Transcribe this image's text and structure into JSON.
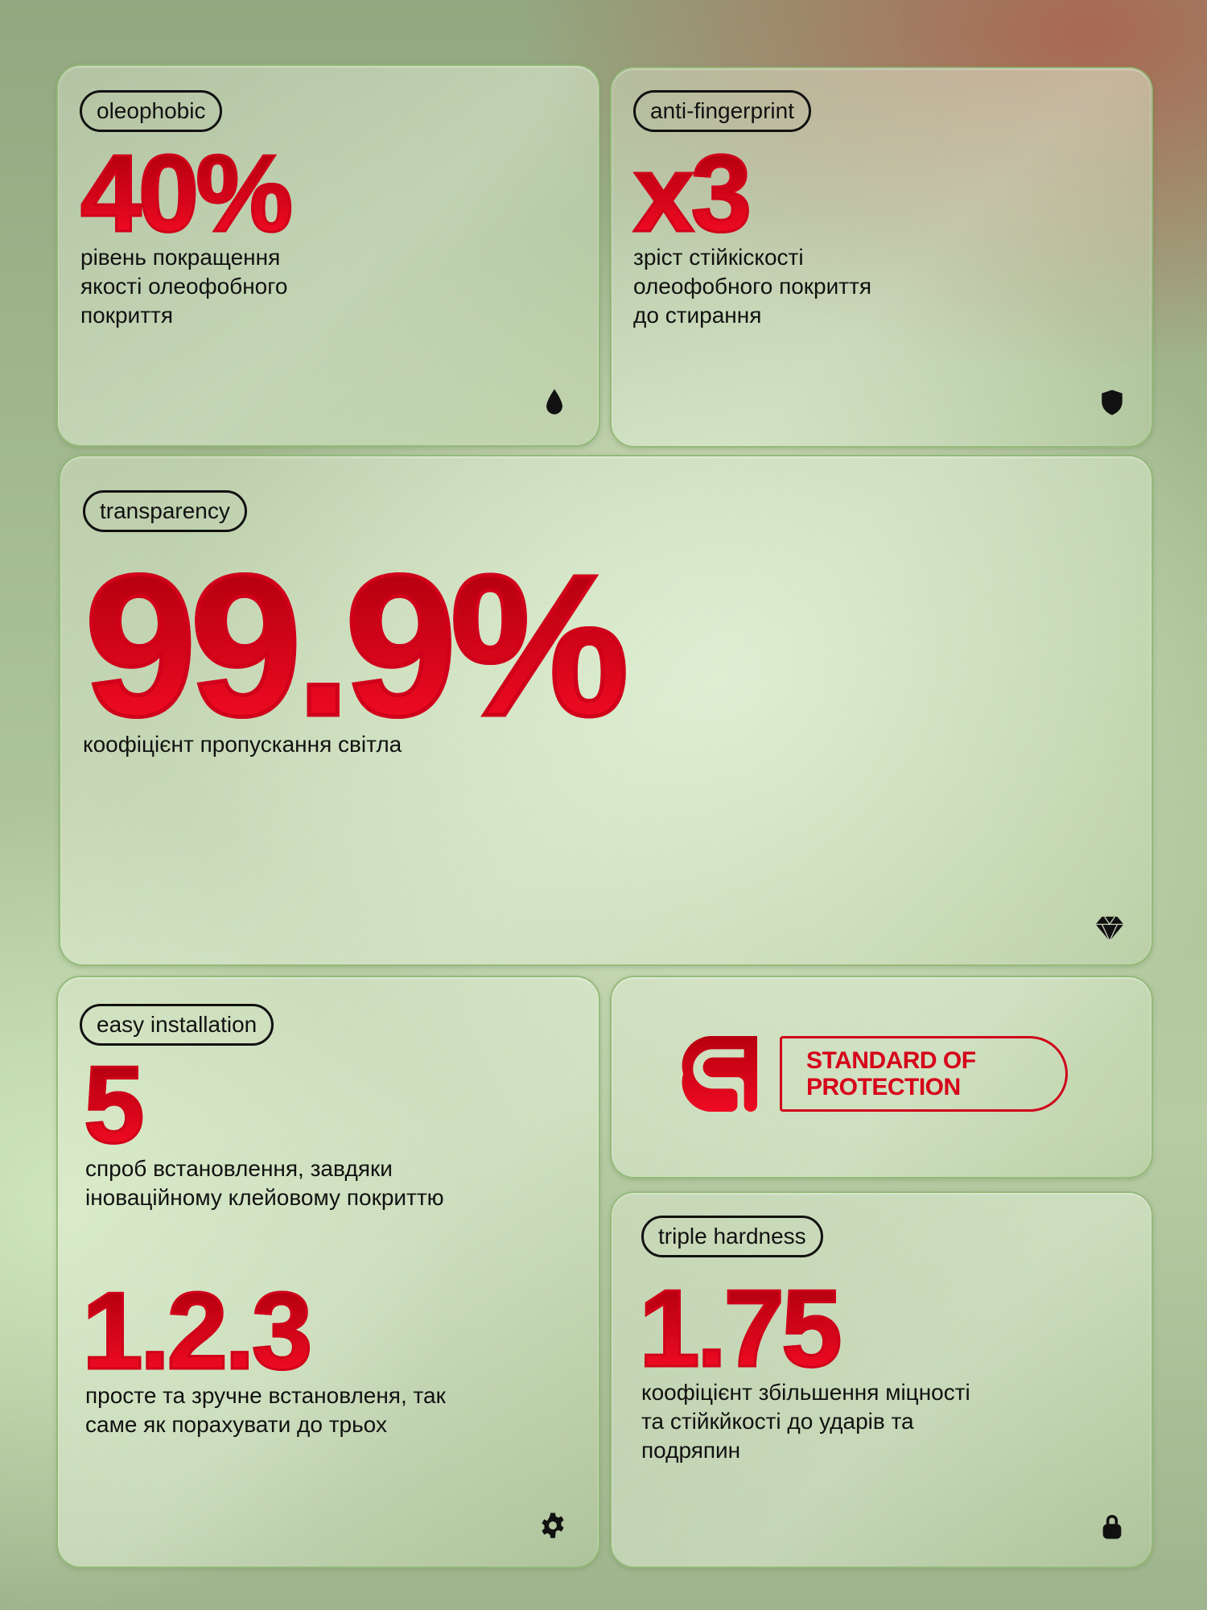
{
  "cards": [
    {
      "tag": "oleophobic",
      "value": "40%",
      "description_lines": [
        "рівень покращення",
        "якості олеофобного",
        "покриття"
      ],
      "icon": "drop-icon"
    },
    {
      "tag": "anti-fingerprint",
      "value": "x3",
      "description_lines": [
        "зріст стійкіскості",
        "олеофобного покриття",
        "до стирання"
      ],
      "icon": "shield-icon"
    },
    {
      "tag": "transparency",
      "value": "99.9%",
      "description_lines": [
        "коофіцієнт пропускання світла"
      ],
      "icon": "diamond-icon"
    },
    {
      "tag": "easy installation",
      "value": "5",
      "description_lines": [
        "спроб встановлення, завдяки",
        "іноваційному клейовому покриттю"
      ],
      "value2": "1.2.3",
      "description2_lines": [
        "просте та зручне встановленя, так",
        "саме як порахувати до трьох"
      ],
      "icon": "gear-icon"
    },
    {
      "tag": "triple hardness",
      "value": "1.75",
      "description_lines": [
        "коофіцієнт збільшення міцності",
        "та стійкйкості до ударів та",
        "подряпин"
      ],
      "icon": "lock-icon"
    }
  ],
  "logo": {
    "line1": "STANDARD OF",
    "line2": "PROTECTION"
  },
  "colors": {
    "accent": "#e0001b",
    "text": "#111111"
  }
}
